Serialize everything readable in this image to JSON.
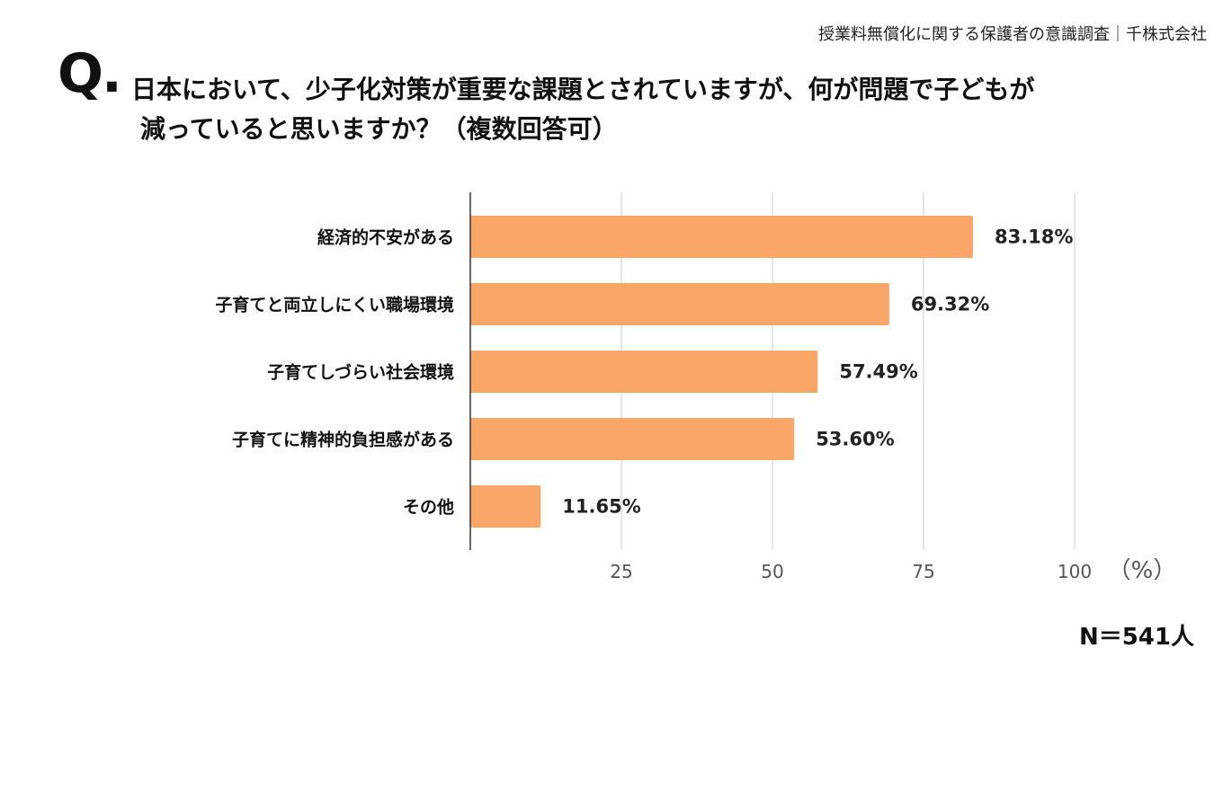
{
  "header": {
    "source": "授業料無償化に関する保護者の意識調査｜千株式会社",
    "q_mark": "Q.",
    "question_line1": "日本において、少子化対策が重要な課題とされていますが、何が問題で子どもが",
    "question_line2": "減っていると思いますか？（複数回答可）"
  },
  "footer": {
    "sample_size": "N＝541人"
  },
  "chart_data": {
    "type": "bar",
    "orientation": "horizontal",
    "categories": [
      "経済的不安がある",
      "子育てと両立しにくい職場環境",
      "子育てしづらい社会環境",
      "子育てに精神的負担感がある",
      "その他"
    ],
    "values": [
      83.18,
      69.32,
      57.49,
      53.6,
      11.65
    ],
    "data_labels": [
      "83.18%",
      "69.32%",
      "57.49%",
      "53.60%",
      "11.65%"
    ],
    "x_ticks": [
      25,
      50,
      75,
      100
    ],
    "x_unit": "（%）",
    "xlim": [
      0,
      100
    ],
    "grid": true,
    "bar_color": "#FBA669"
  }
}
